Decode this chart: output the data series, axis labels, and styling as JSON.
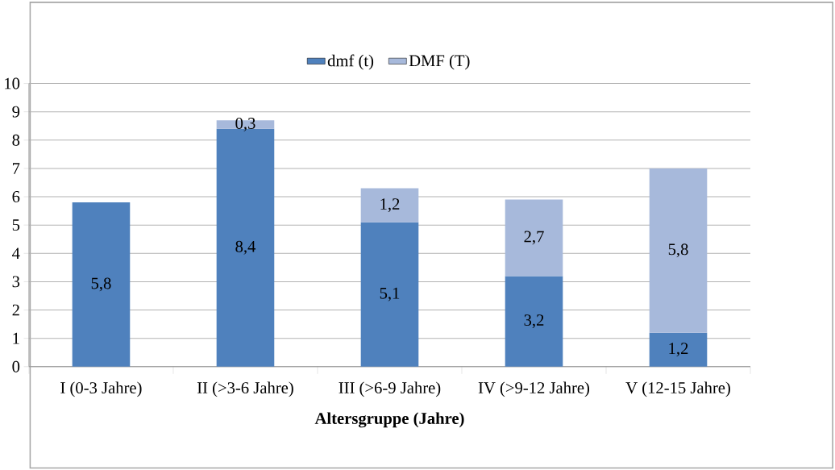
{
  "chart_data": {
    "type": "bar",
    "stacked": true,
    "xlabel": "**Altersgruppe (Jahre)**",
    "categories": [
      "I (0-3 Jahre)",
      "II (>3-6 Jahre)",
      "III (>6-9 Jahre)",
      "IV (>9-12 Jahre)",
      "V (12-15 Jahre)"
    ],
    "series": [
      {
        "name": "dmf (t)",
        "color": "#4f81bd",
        "values": [
          5.8,
          8.4,
          5.1,
          3.2,
          1.2
        ],
        "value_labels": [
          "5,8",
          "8,4",
          "5,1",
          "3,2",
          "1,2"
        ]
      },
      {
        "name": "DMF (T)",
        "color": "#a7b9db",
        "values": [
          null,
          0.3,
          1.2,
          2.7,
          5.8
        ],
        "value_labels": [
          null,
          "0,3",
          "1,2",
          "2,7",
          "5,8"
        ]
      }
    ],
    "ylim": [
      0,
      10
    ],
    "yticks": [
      0,
      1,
      2,
      3,
      4,
      5,
      6,
      7,
      8,
      9,
      10
    ],
    "grid": "y",
    "legend": "top"
  }
}
